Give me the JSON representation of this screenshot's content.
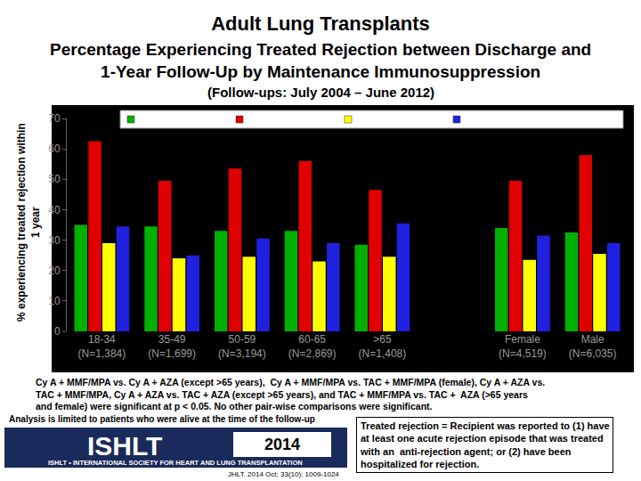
{
  "chart_data": {
    "type": "bar",
    "title": "Adult Lung Transplants",
    "subtitle": "Percentage Experiencing Treated Rejection between Discharge and\n1-Year Follow-Up by Maintenance Immunosuppression\n(Follow-ups: July 2004 – June 2012)",
    "y_label": "% experiencing treated rejection within\n1 year",
    "categories": [
      "18-34\n(N=1,384)",
      "35-49\n(N=1,699)",
      "50-59\n(N=3,194)",
      "60-65\n(N=2,869)",
      ">65\n(N=1,408)",
      null,
      "Female\n(N=4,519)",
      "Male\n(N=6,035)"
    ],
    "series": [
      {
        "color": "#00b000",
        "values": [
          35,
          34.5,
          33,
          33,
          28.5,
          null,
          34,
          32.5
        ]
      },
      {
        "color": "#e00000",
        "values": [
          62.5,
          49.5,
          53.5,
          56,
          46.5,
          null,
          49.5,
          58
        ]
      },
      {
        "color": "#ffff00",
        "values": [
          29,
          24,
          24.5,
          23,
          24.5,
          null,
          23.5,
          25.5
        ]
      },
      {
        "color": "#2020e0",
        "values": [
          34.5,
          25,
          30.5,
          29,
          35.5,
          null,
          31.5,
          29
        ]
      }
    ],
    "ylim": [
      0,
      70
    ],
    "yticks": [
      0,
      10,
      20,
      30,
      40,
      50,
      60,
      70
    ],
    "grid": false,
    "legend": "top",
    "annotations": [
      "Cy A + MMF/MPA vs. Cy A + AZA (except >65 years),  Cy A + MMF/MPA vs. TAC + MMF/MPA (female), Cy A + AZA vs.\nTAC + MMF/MPA, Cy A + AZA vs. TAC + AZA (except >65 years), and TAC + MMF/MPA vs. TAC +  AZA (>65 years\nand female) were significant at p < 0.05. No other pair-wise comparisons were significant.",
      "Analysis is limited to patients who were alive at the time of the follow-up",
      "Treated rejection = Recipient was reported to (1) have\nat least one acute rejection episode that was treated\nwith an  anti-rejection agent; or (2) have been\nhospitalized for rejection."
    ],
    "logo": {
      "name": "ISHLT",
      "year": "2014",
      "society": "ISHLT • INTERNATIONAL SOCIETY FOR HEART AND LUNG TRANSPLANTATION",
      "citation": "JHLT. 2014 Oct; 33(10): 1009-1024"
    }
  }
}
